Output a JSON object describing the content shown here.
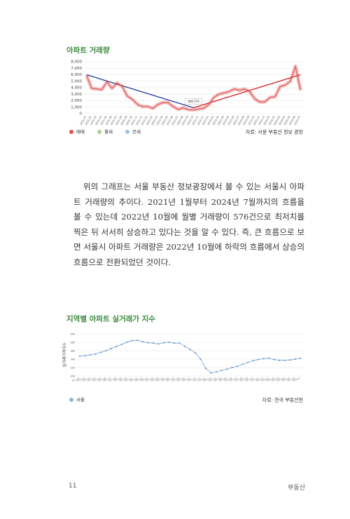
{
  "chart_data": [
    {
      "type": "line",
      "title": "아파트 거래량",
      "categories": [
        "2021.01",
        "2021.02",
        "2021.03",
        "2021.04",
        "2021.05",
        "2021.06",
        "2021.07",
        "2021.08",
        "2021.09",
        "2021.10",
        "2021.11",
        "2021.12",
        "2022.01",
        "2022.02",
        "2022.03",
        "2022.04",
        "2022.05",
        "2022.06",
        "2022.07",
        "2022.08",
        "2022.09",
        "2022.10",
        "2022.11",
        "2022.12",
        "2023.01",
        "2023.02",
        "2023.03",
        "2023.04",
        "2023.05",
        "2023.06",
        "2023.07",
        "2023.08",
        "2023.09",
        "2023.10",
        "2023.11",
        "2023.12",
        "2024.01",
        "2024.02",
        "2024.03",
        "2024.04",
        "2024.05",
        "2024.06",
        "2024.07"
      ],
      "series": [
        {
          "name": "매매",
          "color": "#e05050",
          "values": [
            5900,
            3900,
            3800,
            3700,
            4900,
            3900,
            4700,
            4200,
            2700,
            2200,
            1400,
            1100,
            1100,
            800,
            1400,
            1700,
            1700,
            1100,
            640,
            900,
            600,
            576,
            700,
            850,
            1400,
            2500,
            3000,
            3200,
            3400,
            3800,
            3600,
            3800,
            3400,
            2300,
            1800,
            1800,
            2500,
            2600,
            4200,
            4400,
            5000,
            7300,
            3600
          ]
        },
        {
          "name": "월세",
          "color": "#a8d08d",
          "values": [
            null,
            null,
            null,
            null,
            null,
            null,
            null,
            null,
            null,
            null,
            null,
            null,
            null,
            null,
            null,
            null,
            null,
            null,
            null,
            null,
            null,
            null,
            null,
            null,
            null,
            null,
            null,
            null,
            null,
            null,
            null,
            null,
            null,
            null,
            null,
            null,
            null,
            null,
            null,
            null,
            null,
            null,
            null
          ]
        },
        {
          "name": "전세",
          "color": "#9dc3e6",
          "values": [
            null,
            null,
            null,
            null,
            null,
            null,
            null,
            null,
            null,
            null,
            null,
            null,
            null,
            null,
            null,
            null,
            null,
            null,
            null,
            null,
            null,
            null,
            null,
            null,
            null,
            null,
            null,
            null,
            null,
            null,
            null,
            null,
            null,
            null,
            null,
            null,
            null,
            null,
            null,
            null,
            null,
            null,
            null
          ]
        }
      ],
      "trend_lines": [
        {
          "color": "#1f3c99",
          "from": "2021.01",
          "to": "2022.10",
          "start": 6000,
          "end": 900
        },
        {
          "color": "#d42020",
          "from": "2022.10",
          "to": "2024.07",
          "start": 900,
          "end": 6000
        }
      ],
      "annotation": "매매 576",
      "annotation_at": "2022.10",
      "ylim": [
        0,
        8000
      ],
      "yticks": [
        0,
        {
          "value": 1000,
          "label": "1,000"
        },
        {
          "value": 2000,
          "label": "2,000"
        },
        {
          "value": 3000,
          "label": "3,000"
        },
        {
          "value": 4000,
          "label": "4,000"
        },
        {
          "value": 5000,
          "label": "5,000"
        },
        {
          "value": 6000,
          "label": "6,000"
        },
        {
          "value": 7000,
          "label": "7,000"
        },
        {
          "value": 8000,
          "label": "8,000"
        }
      ],
      "grid": true,
      "source": "자료: 서울 부동산 정보 광장"
    },
    {
      "type": "line",
      "title": "지역별 아파트 실거래가 지수",
      "y_label": "실거래가격지수",
      "categories": [
        "2021.01",
        "2021.02",
        "2021.03",
        "2021.04",
        "2021.05",
        "2021.06",
        "2021.07",
        "2021.08",
        "2021.09",
        "2021.10",
        "2021.11",
        "2021.12",
        "2022.01",
        "2022.02",
        "2022.03",
        "2022.04",
        "2022.05",
        "2022.06",
        "2022.07",
        "2022.08",
        "2022.09",
        "2022.10",
        "2022.11",
        "2022.12",
        "2023.01",
        "2023.02",
        "2023.03",
        "2023.04",
        "2023.05",
        "2023.06",
        "2023.07",
        "2023.08",
        "2023.09",
        "2023.10",
        "2023.11",
        "2023.12",
        "2024.01",
        "2024.02",
        "2024.03",
        "2024.04",
        "2024.05",
        "2024.06",
        "2024.07"
      ],
      "series": [
        {
          "name": "서울",
          "color": "#8fb4e3",
          "values": [
            147,
            148,
            150,
            152,
            156,
            160,
            165,
            170,
            175,
            180,
            184,
            185,
            181,
            179,
            178,
            176,
            179,
            180,
            178,
            178,
            170,
            163,
            155,
            140,
            118,
            107,
            110,
            113,
            116,
            120,
            123,
            128,
            132,
            136,
            139,
            141,
            142,
            139,
            137,
            137,
            138,
            140,
            142
          ]
        }
      ],
      "ylim": [
        100,
        200
      ],
      "yticks": [
        100,
        120,
        140,
        160,
        180,
        200
      ],
      "grid": true,
      "source": "자료: 한국 부동산원"
    }
  ],
  "paragraph": "위의 그래프는 서울 부동산 정보광장에서 볼 수 있는 서울시 아파트 거래량의 추이다. 2021년 1월부터 2024년 7월까지의 흐름을 볼 수 있는데 2022년 10월에 월별 거래량이 576건으로 최저치를 찍은 뒤 서서히 상승하고 있다는 것을 알 수 있다. 즉, 큰 흐름으로 보면 서울시 아파트 거래량은 2022년 10월에 하락의 흐름에서 상승의 흐름으로 전환되었던 것이다.",
  "page_number": "11",
  "section": "부동산"
}
